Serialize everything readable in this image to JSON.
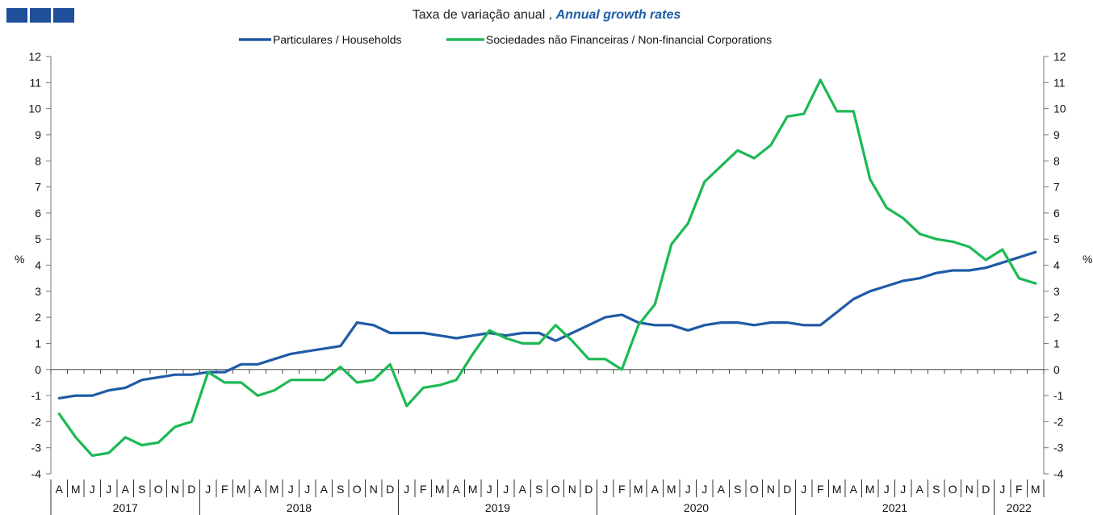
{
  "header": {
    "subtitle_pt": "Taxa de variação anual ,",
    "subtitle_en": "Annual growth rates"
  },
  "chart_data": {
    "type": "line",
    "ylabel_left": "%",
    "ylabel_right": "%",
    "ylim": [
      -4,
      12
    ],
    "yticks": [
      -4,
      -3,
      -2,
      -1,
      0,
      1,
      2,
      3,
      4,
      5,
      6,
      7,
      8,
      9,
      10,
      11,
      12
    ],
    "grid": false,
    "legend_position": "top-center",
    "month_labels": [
      "A",
      "M",
      "J",
      "J",
      "A",
      "S",
      "O",
      "N",
      "D",
      "J",
      "F",
      "M",
      "A",
      "M",
      "J",
      "J",
      "A",
      "S",
      "O",
      "N",
      "D",
      "J",
      "F",
      "M",
      "A",
      "M",
      "J",
      "J",
      "A",
      "S",
      "O",
      "N",
      "D",
      "J",
      "F",
      "M",
      "A",
      "M",
      "J",
      "J",
      "A",
      "S",
      "O",
      "N",
      "D",
      "J",
      "F",
      "M",
      "A",
      "M",
      "J",
      "J",
      "A",
      "S",
      "O",
      "N",
      "D",
      "J",
      "F",
      "M"
    ],
    "years": [
      {
        "label": "2017",
        "start": 0,
        "end": 9
      },
      {
        "label": "2018",
        "start": 9,
        "end": 21
      },
      {
        "label": "2019",
        "start": 21,
        "end": 33
      },
      {
        "label": "2020",
        "start": 33,
        "end": 45
      },
      {
        "label": "2021",
        "start": 45,
        "end": 57
      },
      {
        "label": "2022",
        "start": 57,
        "end": 60
      }
    ],
    "x_start": "2017-04",
    "x_end": "2022-03",
    "series": [
      {
        "name": "Particulares / Households",
        "color": "#1f5aa6",
        "values": [
          -1.1,
          -1.0,
          -1.0,
          -0.8,
          -0.7,
          -0.4,
          -0.3,
          -0.2,
          -0.2,
          -0.1,
          -0.1,
          0.2,
          0.2,
          0.4,
          0.6,
          0.7,
          0.8,
          0.9,
          1.8,
          1.7,
          1.4,
          1.4,
          1.4,
          1.3,
          1.2,
          1.3,
          1.4,
          1.3,
          1.4,
          1.4,
          1.1,
          1.4,
          1.7,
          2.0,
          2.1,
          1.8,
          1.7,
          1.7,
          1.5,
          1.7,
          1.8,
          1.8,
          1.7,
          1.8,
          1.8,
          1.7,
          1.7,
          2.2,
          2.7,
          3.0,
          3.2,
          3.4,
          3.5,
          3.7,
          3.8,
          3.8,
          3.9,
          4.1,
          4.3,
          4.5
        ]
      },
      {
        "name": "Sociedades não Financeiras / Non-financial Corporations",
        "color": "#1db954",
        "values": [
          -1.7,
          -2.6,
          -3.3,
          -3.2,
          -2.6,
          -2.9,
          -2.8,
          -2.2,
          -2.0,
          -0.1,
          -0.5,
          -0.5,
          -1.0,
          -0.8,
          -0.4,
          -0.4,
          -0.4,
          0.1,
          -0.5,
          -0.4,
          0.2,
          -1.4,
          -0.7,
          -0.6,
          -0.4,
          0.6,
          1.5,
          1.2,
          1.0,
          1.0,
          1.7,
          1.1,
          0.4,
          0.4,
          0.0,
          1.7,
          2.5,
          4.8,
          5.6,
          7.2,
          7.8,
          8.4,
          8.1,
          8.6,
          9.7,
          9.8,
          11.1,
          9.9,
          9.9,
          7.3,
          6.2,
          5.8,
          5.2,
          5.0,
          4.9,
          4.7,
          4.2,
          4.6,
          3.5,
          3.3
        ]
      }
    ]
  }
}
